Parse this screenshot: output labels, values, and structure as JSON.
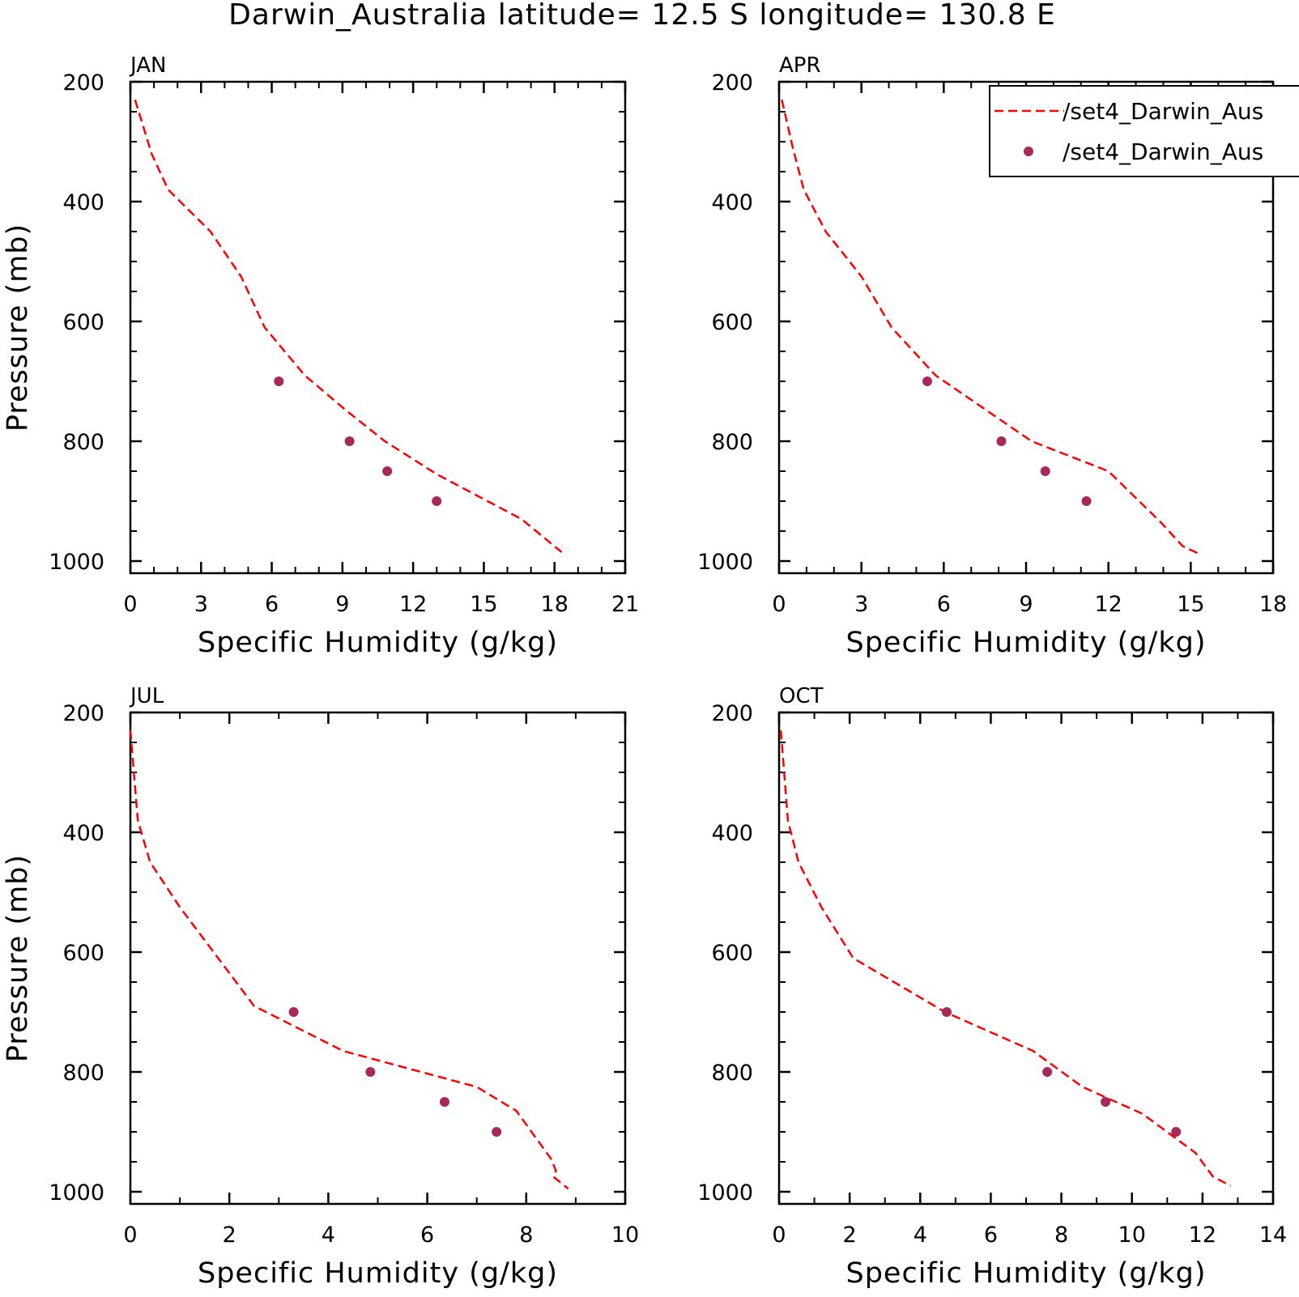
{
  "title": "Darwin_Australia  latitude= 12.5 S longitude= 130.8 E",
  "legend": {
    "entries": [
      {
        "label": "/set4_Darwin_Aus",
        "kind": "line",
        "color": "#ff0000",
        "dash": "dashed"
      },
      {
        "label": "/set4_Darwin_Aus",
        "kind": "marker",
        "color": "#a8285a"
      }
    ],
    "placement": "top-right, clipped at figure edge"
  },
  "colors": {
    "model_line": "#ff0000",
    "obs_marker": "#a8285a",
    "axes": "#000000"
  },
  "chart_data": [
    {
      "type": "line",
      "panel": "JAN",
      "xlabel": "Specific Humidity (g/kg)",
      "ylabel": "Pressure (mb)",
      "xlim": [
        0,
        21
      ],
      "ylim": [
        1000,
        200
      ],
      "y_inverted": true,
      "xticks": [
        "0",
        "3",
        "6",
        "9",
        "12",
        "15",
        "18",
        "21"
      ],
      "yticks": [
        "200",
        "400",
        "600",
        "800",
        "1000"
      ],
      "series": [
        {
          "kind": "line",
          "color": "#ff0000",
          "dash": "dashed",
          "x": [
            0.2,
            0.9,
            1.6,
            3.4,
            4.7,
            5.7,
            7.4,
            9.2,
            10.8,
            13.0,
            16.6,
            18.3
          ],
          "y": [
            230,
            320,
            380,
            450,
            525,
            610,
            690,
            750,
            800,
            855,
            930,
            985
          ]
        },
        {
          "kind": "scatter",
          "color": "#a8285a",
          "x": [
            6.3,
            9.3,
            10.9,
            13.0
          ],
          "y": [
            700,
            800,
            850,
            900
          ]
        }
      ]
    },
    {
      "type": "line",
      "panel": "APR",
      "xlabel": "Specific Humidity (g/kg)",
      "ylabel": "",
      "xlim": [
        0,
        18
      ],
      "ylim": [
        1000,
        200
      ],
      "y_inverted": true,
      "xticks": [
        "0",
        "3",
        "6",
        "9",
        "12",
        "15",
        "18"
      ],
      "yticks": [
        "200",
        "400",
        "600",
        "800",
        "1000"
      ],
      "series": [
        {
          "kind": "line",
          "color": "#ff0000",
          "dash": "dashed",
          "x": [
            0.1,
            0.5,
            0.9,
            1.7,
            3.0,
            4.1,
            5.7,
            9.2,
            12.0,
            13.9,
            14.7,
            15.4
          ],
          "y": [
            230,
            310,
            380,
            450,
            525,
            610,
            690,
            800,
            850,
            935,
            975,
            990
          ]
        },
        {
          "kind": "scatter",
          "color": "#a8285a",
          "x": [
            5.4,
            8.1,
            9.7,
            11.2
          ],
          "y": [
            700,
            800,
            850,
            900
          ]
        }
      ]
    },
    {
      "type": "line",
      "panel": "JUL",
      "xlabel": "Specific Humidity (g/kg)",
      "ylabel": "Pressure (mb)",
      "xlim": [
        0,
        10
      ],
      "ylim": [
        1000,
        200
      ],
      "y_inverted": true,
      "xticks": [
        "0",
        "2",
        "4",
        "6",
        "8",
        "10"
      ],
      "yticks": [
        "200",
        "400",
        "600",
        "800",
        "1000"
      ],
      "series": [
        {
          "kind": "line",
          "color": "#ff0000",
          "dash": "dashed",
          "x": [
            0.0,
            0.15,
            0.4,
            1.0,
            2.5,
            4.3,
            7.0,
            7.8,
            8.5,
            8.6,
            8.55,
            8.85
          ],
          "y": [
            230,
            380,
            450,
            525,
            690,
            765,
            825,
            865,
            945,
            965,
            975,
            995
          ]
        },
        {
          "kind": "scatter",
          "color": "#a8285a",
          "x": [
            3.3,
            4.85,
            6.35,
            7.4
          ],
          "y": [
            700,
            800,
            850,
            900
          ]
        }
      ]
    },
    {
      "type": "line",
      "panel": "OCT",
      "xlabel": "Specific Humidity (g/kg)",
      "ylabel": "",
      "xlim": [
        0,
        14
      ],
      "ylim": [
        1000,
        200
      ],
      "y_inverted": true,
      "xticks": [
        "0",
        "2",
        "4",
        "6",
        "8",
        "10",
        "12",
        "14"
      ],
      "yticks": [
        "200",
        "400",
        "600",
        "800",
        "1000"
      ],
      "series": [
        {
          "kind": "line",
          "color": "#ff0000",
          "dash": "dashed",
          "x": [
            0.05,
            0.25,
            0.55,
            1.2,
            2.1,
            4.7,
            7.2,
            8.6,
            10.3,
            11.8,
            12.3,
            12.8
          ],
          "y": [
            230,
            380,
            450,
            525,
            610,
            700,
            765,
            825,
            870,
            935,
            975,
            990
          ]
        },
        {
          "kind": "scatter",
          "color": "#a8285a",
          "x": [
            4.75,
            7.6,
            9.25,
            11.25
          ],
          "y": [
            700,
            800,
            850,
            900
          ]
        }
      ]
    }
  ]
}
